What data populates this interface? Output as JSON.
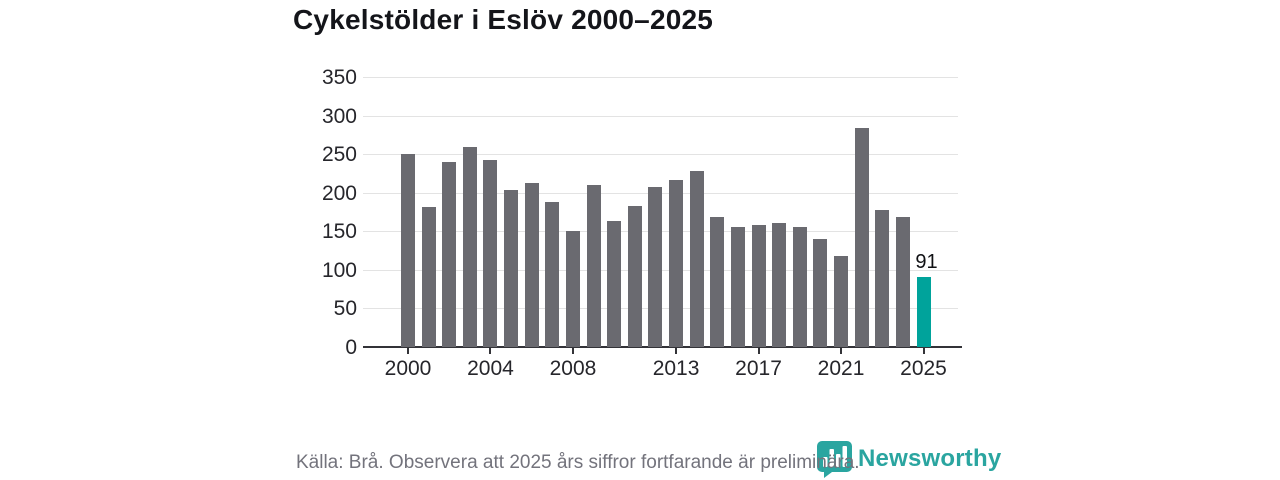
{
  "title": "Cykelstölder i Eslöv 2000–2025",
  "chart_data": {
    "type": "bar",
    "title": "Cykelstölder i Eslöv 2000–2025",
    "x": [
      2000,
      2001,
      2002,
      2003,
      2004,
      2005,
      2006,
      2007,
      2008,
      2009,
      2010,
      2011,
      2012,
      2013,
      2014,
      2015,
      2016,
      2017,
      2018,
      2019,
      2020,
      2021,
      2022,
      2023,
      2024,
      2025
    ],
    "values": [
      250,
      182,
      240,
      259,
      243,
      204,
      213,
      188,
      150,
      210,
      163,
      183,
      208,
      217,
      228,
      168,
      155,
      158,
      161,
      156,
      140,
      118,
      284,
      178,
      169,
      91
    ],
    "xlabel": "",
    "ylabel": "",
    "ylim": [
      0,
      350
    ],
    "yticks": [
      0,
      50,
      100,
      150,
      200,
      250,
      300,
      350
    ],
    "xticks": [
      2000,
      2004,
      2008,
      2013,
      2017,
      2021,
      2025
    ],
    "grid": "horizontal",
    "legend_position": "none",
    "highlight": {
      "year": 2025,
      "value": 91,
      "data_label": "91"
    }
  },
  "colors": {
    "bar": "#6a6a70",
    "highlight_bar": "#00a39b",
    "gridline": "#e3e3e3",
    "axis": "#333338",
    "brand_teal": "#2aa5a0"
  },
  "footer": {
    "source_note": "Källa: Brå. Observera att 2025 års siffror fortfarande är preliminära.",
    "brand": {
      "name": "Newsworthy"
    }
  }
}
